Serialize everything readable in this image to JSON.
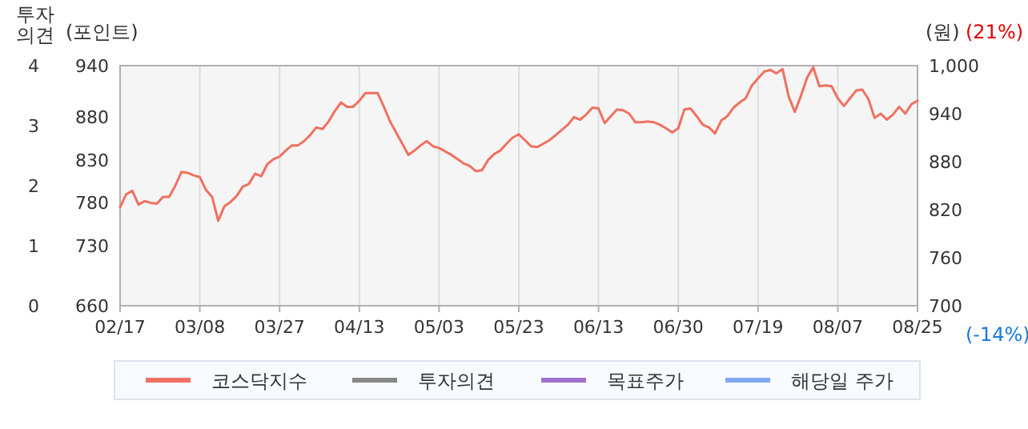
{
  "chart_data": {
    "type": "line",
    "ylabel": "(포인트)",
    "y2label": "(원)",
    "y3label": "투자의견",
    "annotations": [
      "(21%)",
      "(-14%)"
    ],
    "categories": [
      "02/17",
      null,
      null,
      null,
      null,
      null,
      null,
      null,
      null,
      null,
      null,
      null,
      null,
      "03/08",
      null,
      null,
      null,
      null,
      null,
      null,
      null,
      null,
      null,
      null,
      null,
      null,
      "03/27",
      null,
      null,
      null,
      null,
      null,
      null,
      null,
      null,
      null,
      null,
      null,
      null,
      "04/13",
      null,
      null,
      null,
      null,
      null,
      null,
      null,
      null,
      null,
      null,
      null,
      null,
      "05/03",
      null,
      null,
      null,
      null,
      null,
      null,
      null,
      null,
      null,
      null,
      null,
      null,
      "05/23",
      null,
      null,
      null,
      null,
      null,
      null,
      null,
      null,
      null,
      null,
      null,
      null,
      "06/13",
      null,
      null,
      null,
      null,
      null,
      null,
      null,
      null,
      null,
      null,
      null,
      null,
      "06/30",
      null,
      null,
      null,
      null,
      null,
      null,
      null,
      null,
      null,
      null,
      null,
      null,
      "07/19",
      null,
      null,
      null,
      null,
      null,
      null,
      null,
      null,
      null,
      null,
      null,
      null,
      "08/07",
      null,
      null,
      null,
      null,
      null,
      null,
      null,
      null,
      null,
      null,
      null,
      null,
      "08/25"
    ],
    "ylim": [
      660,
      940
    ],
    "yticks": [
      660,
      730,
      780,
      830,
      880,
      940
    ],
    "y2lim": [
      700,
      1000
    ],
    "y2ticks": [
      700,
      760,
      820,
      880,
      940,
      {
        "value": 1000,
        "label": "1,000"
      }
    ],
    "y3lim": [
      0,
      4
    ],
    "y3ticks": [
      0,
      1,
      2,
      3,
      4
    ],
    "grid": "x",
    "legend": "bottom",
    "line_style": "solid",
    "marker": "none",
    "series": [
      {
        "name": "코스닥지수",
        "color": "#f07060",
        "values": [
          775,
          790,
          794,
          778,
          782,
          780,
          779,
          787,
          787,
          800,
          816,
          815,
          812,
          810,
          795,
          787,
          759,
          776,
          781,
          788,
          799,
          802,
          814,
          811,
          825,
          831,
          834,
          841,
          847,
          847,
          852,
          859,
          868,
          866,
          875,
          887,
          897,
          892,
          892,
          899,
          908,
          908,
          908,
          892,
          875,
          862,
          849,
          836,
          841,
          847,
          852,
          846,
          844,
          840,
          836,
          831,
          826,
          823,
          817,
          818,
          830,
          837,
          841,
          849,
          856,
          860,
          853,
          846,
          845,
          849,
          853,
          859,
          865,
          871,
          880,
          877,
          883,
          891,
          890,
          873,
          881,
          889,
          888,
          884,
          874,
          874,
          875,
          874,
          871,
          867,
          862,
          867,
          889,
          890,
          881,
          871,
          868,
          861,
          876,
          881,
          891,
          897,
          902,
          917,
          925,
          933,
          935,
          931,
          936,
          904,
          886,
          905,
          926,
          938,
          916,
          917,
          916,
          902,
          893,
          902,
          911,
          912,
          901,
          879,
          884,
          877,
          883,
          892,
          884,
          895,
          899
        ]
      },
      {
        "name": "투자의견",
        "color": "#888888",
        "values": [
          null,
          null,
          null,
          null,
          null,
          null,
          null,
          null,
          null,
          null,
          null,
          null,
          null,
          null,
          null,
          null,
          null,
          null,
          null,
          null,
          null,
          null,
          null,
          null,
          null,
          null,
          null,
          null,
          null,
          null,
          null,
          null,
          null,
          null,
          null,
          null,
          null,
          null,
          null,
          null,
          null,
          null,
          null,
          null,
          null,
          null,
          null,
          null,
          null,
          null,
          null,
          null,
          null,
          null,
          null,
          null,
          null,
          null,
          null,
          null,
          null,
          null,
          null,
          null,
          null,
          null,
          null,
          null,
          null,
          null,
          null,
          null,
          null,
          null,
          null,
          null,
          null,
          null,
          null,
          null,
          null,
          null,
          null,
          null,
          null,
          null,
          null,
          null,
          null,
          null,
          null,
          null,
          null,
          null,
          null,
          null,
          null,
          null,
          null,
          null,
          null,
          null,
          null,
          null,
          null,
          null,
          null,
          null,
          null,
          null,
          null,
          null,
          null,
          null,
          null,
          null,
          null,
          null,
          null,
          null,
          null,
          null,
          null,
          null,
          null,
          null,
          null,
          null,
          null,
          null,
          null
        ]
      },
      {
        "name": "목표주가",
        "color": "#a070d0",
        "values": [
          null,
          null,
          null,
          null,
          null,
          null,
          null,
          null,
          null,
          null,
          null,
          null,
          null,
          null,
          null,
          null,
          null,
          null,
          null,
          null,
          null,
          null,
          null,
          null,
          null,
          null,
          null,
          null,
          null,
          null,
          null,
          null,
          null,
          null,
          null,
          null,
          null,
          null,
          null,
          null,
          null,
          null,
          null,
          null,
          null,
          null,
          null,
          null,
          null,
          null,
          null,
          null,
          null,
          null,
          null,
          null,
          null,
          null,
          null,
          null,
          null,
          null,
          null,
          null,
          null,
          null,
          null,
          null,
          null,
          null,
          null,
          null,
          null,
          null,
          null,
          null,
          null,
          null,
          null,
          null,
          null,
          null,
          null,
          null,
          null,
          null,
          null,
          null,
          null,
          null,
          null,
          null,
          null,
          null,
          null,
          null,
          null,
          null,
          null,
          null,
          null,
          null,
          null,
          null,
          null,
          null,
          null,
          null,
          null,
          null,
          null,
          null,
          null,
          null,
          null,
          null,
          null,
          null,
          null,
          null,
          null,
          null,
          null,
          null,
          null,
          null,
          null,
          null,
          null,
          null,
          null
        ]
      },
      {
        "name": "해당일 주가",
        "color": "#80a8f0",
        "values": [
          null,
          null,
          null,
          null,
          null,
          null,
          null,
          null,
          null,
          null,
          null,
          null,
          null,
          null,
          null,
          null,
          null,
          null,
          null,
          null,
          null,
          null,
          null,
          null,
          null,
          null,
          null,
          null,
          null,
          null,
          null,
          null,
          null,
          null,
          null,
          null,
          null,
          null,
          null,
          null,
          null,
          null,
          null,
          null,
          null,
          null,
          null,
          null,
          null,
          null,
          null,
          null,
          null,
          null,
          null,
          null,
          null,
          null,
          null,
          null,
          null,
          null,
          null,
          null,
          null,
          null,
          null,
          null,
          null,
          null,
          null,
          null,
          null,
          null,
          null,
          null,
          null,
          null,
          null,
          null,
          null,
          null,
          null,
          null,
          null,
          null,
          null,
          null,
          null,
          null,
          null,
          null,
          null,
          null,
          null,
          null,
          null,
          null,
          null,
          null,
          null,
          null,
          null,
          null,
          null,
          null,
          null,
          null,
          null,
          null,
          null,
          null,
          null,
          null,
          null,
          null,
          null,
          null,
          null,
          null,
          null,
          null,
          null,
          null,
          null,
          null,
          null,
          null,
          null,
          null,
          null
        ]
      }
    ]
  }
}
